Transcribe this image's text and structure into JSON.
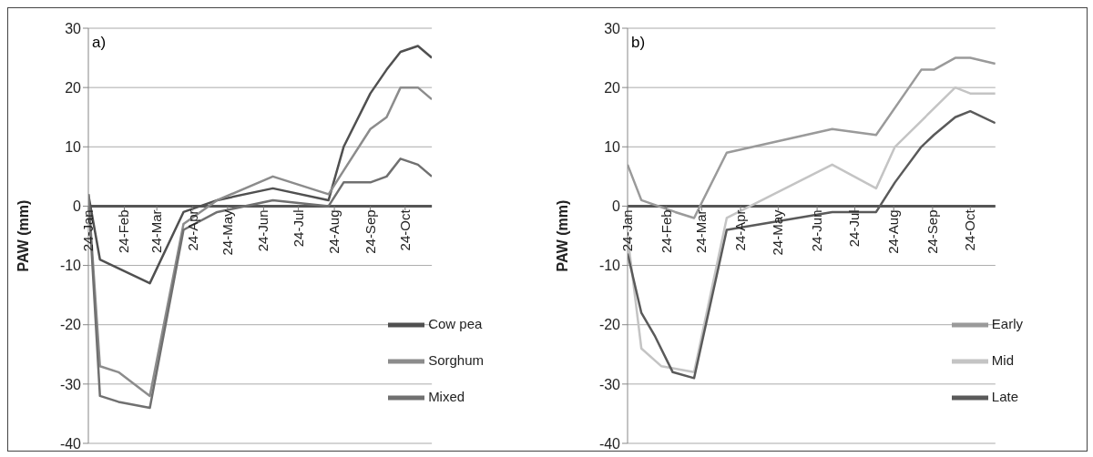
{
  "chart_data": [
    {
      "type": "line",
      "title": "a)",
      "ylabel": "PAW (mm)",
      "xlim": [
        "--01-24",
        "--11-16"
      ],
      "xticks": [
        {
          "value": "--01-24",
          "label": "24-Jan"
        },
        {
          "value": "--02-24",
          "label": "24-Feb"
        },
        {
          "value": "--03-24",
          "label": "24-Mar"
        },
        {
          "value": "--04-24",
          "label": "24-Apr"
        },
        {
          "value": "--05-24",
          "label": "24-May"
        },
        {
          "value": "--06-24",
          "label": "24-Jun"
        },
        {
          "value": "--07-24",
          "label": "24-Jul"
        },
        {
          "value": "--08-24",
          "label": "24-Aug"
        },
        {
          "value": "--09-24",
          "label": "24-Sep"
        },
        {
          "value": "--10-24",
          "label": "24-Oct"
        }
      ],
      "ylim": [
        -40,
        30
      ],
      "yticks": [
        -40,
        -30,
        -20,
        -10,
        0,
        10,
        20,
        30
      ],
      "grid": "y",
      "legend": "bottom right",
      "marker": "none",
      "line_style": "solid",
      "series": [
        {
          "name": "Cow pea",
          "color": "#505050",
          "x": [
            "--01-24",
            "--02-03",
            "--03-18",
            "--04-16",
            "--05-15",
            "--07-02",
            "--08-19",
            "--09-01",
            "--09-24",
            "--10-08",
            "--10-20",
            "--11-04",
            "--11-16"
          ],
          "values": [
            2,
            -9,
            -13,
            -1,
            1,
            3,
            1,
            10,
            19,
            23,
            26,
            27,
            25
          ]
        },
        {
          "name": "Sorghum",
          "color": "#8c8c8c",
          "x": [
            "--01-24",
            "--02-03",
            "--02-19",
            "--03-18",
            "--04-16",
            "--05-15",
            "--07-02",
            "--08-19",
            "--09-01",
            "--09-24",
            "--10-08",
            "--10-20",
            "--11-04",
            "--11-16"
          ],
          "values": [
            2,
            -27,
            -28,
            -32,
            -3,
            1,
            5,
            2,
            6,
            13,
            15,
            20,
            20,
            18
          ]
        },
        {
          "name": "Mixed",
          "color": "#707070",
          "x": [
            "--01-24",
            "--02-03",
            "--02-19",
            "--03-18",
            "--04-16",
            "--05-15",
            "--07-02",
            "--08-19",
            "--09-01",
            "--09-24",
            "--10-08",
            "--10-20",
            "--11-04",
            "--11-16"
          ],
          "values": [
            2,
            -32,
            -33,
            -34,
            -4,
            -1,
            1,
            0,
            4,
            4,
            5,
            8,
            7,
            5
          ]
        }
      ]
    },
    {
      "type": "line",
      "title": "b)",
      "ylabel": "PAW (mm)",
      "xlim": [
        "--01-24",
        "--11-13"
      ],
      "xticks": [
        {
          "value": "--01-24",
          "label": "24-Jan"
        },
        {
          "value": "--02-24",
          "label": "24-Feb"
        },
        {
          "value": "--03-24",
          "label": "24-Mar"
        },
        {
          "value": "--04-24",
          "label": "24-Apr"
        },
        {
          "value": "--05-24",
          "label": "24-May"
        },
        {
          "value": "--06-24",
          "label": "24-Jun"
        },
        {
          "value": "--07-24",
          "label": "24-Jul"
        },
        {
          "value": "--08-24",
          "label": "24-Aug"
        },
        {
          "value": "--09-24",
          "label": "24-Sep"
        },
        {
          "value": "--10-24",
          "label": "24-Oct"
        }
      ],
      "ylim": [
        -40,
        30
      ],
      "yticks": [
        -40,
        -30,
        -20,
        -10,
        0,
        10,
        20,
        30
      ],
      "grid": "y",
      "legend": "bottom right",
      "marker": "none",
      "line_style": "solid",
      "series": [
        {
          "name": "Early",
          "color": "#9a9a9a",
          "x": [
            "--01-24",
            "--02-04",
            "--03-03",
            "--03-18",
            "--04-13",
            "--07-06",
            "--08-10",
            "--09-15",
            "--09-25",
            "--10-12",
            "--10-24",
            "--11-13"
          ],
          "values": [
            7,
            1,
            -1,
            -2,
            9,
            13,
            12,
            23,
            23,
            25,
            25,
            24
          ]
        },
        {
          "name": "Mid",
          "color": "#c4c4c4",
          "x": [
            "--01-24",
            "--02-04",
            "--02-20",
            "--03-18",
            "--04-13",
            "--07-06",
            "--08-10",
            "--08-25",
            "--10-12",
            "--10-24",
            "--11-13"
          ],
          "values": [
            -5,
            -24,
            -27,
            -28,
            -2,
            7,
            3,
            10,
            20,
            19,
            19
          ]
        },
        {
          "name": "Late",
          "color": "#5a5a5a",
          "x": [
            "--01-24",
            "--02-04",
            "--02-15",
            "--03-01",
            "--03-18",
            "--04-13",
            "--07-06",
            "--08-10",
            "--08-25",
            "--09-15",
            "--09-25",
            "--10-12",
            "--10-24",
            "--11-13"
          ],
          "values": [
            -8,
            -18,
            -22,
            -28,
            -29,
            -4,
            -1,
            -1,
            4,
            10,
            12,
            15,
            16,
            14
          ]
        }
      ]
    }
  ]
}
